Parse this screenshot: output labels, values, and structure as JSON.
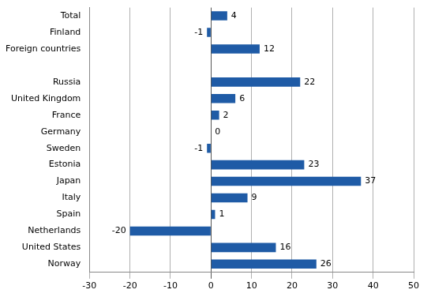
{
  "chart_data": {
    "type": "bar",
    "orientation": "horizontal",
    "categories": [
      "Total",
      "Finland",
      "Foreign countries",
      null,
      "Russia",
      "United Kingdom",
      "France",
      "Germany",
      "Sweden",
      "Estonia",
      "Japan",
      "Italy",
      "Spain",
      "Netherlands",
      "United States",
      "Norway"
    ],
    "values": [
      4,
      -1,
      12,
      null,
      22,
      6,
      2,
      0,
      -1,
      23,
      37,
      9,
      1,
      -20,
      16,
      26
    ],
    "color": "#1f5ba6",
    "xlim": [
      -30,
      50
    ],
    "xticks": [
      -30,
      -20,
      -10,
      0,
      10,
      20,
      30,
      40,
      50
    ],
    "grid": true,
    "data_labels": true
  }
}
